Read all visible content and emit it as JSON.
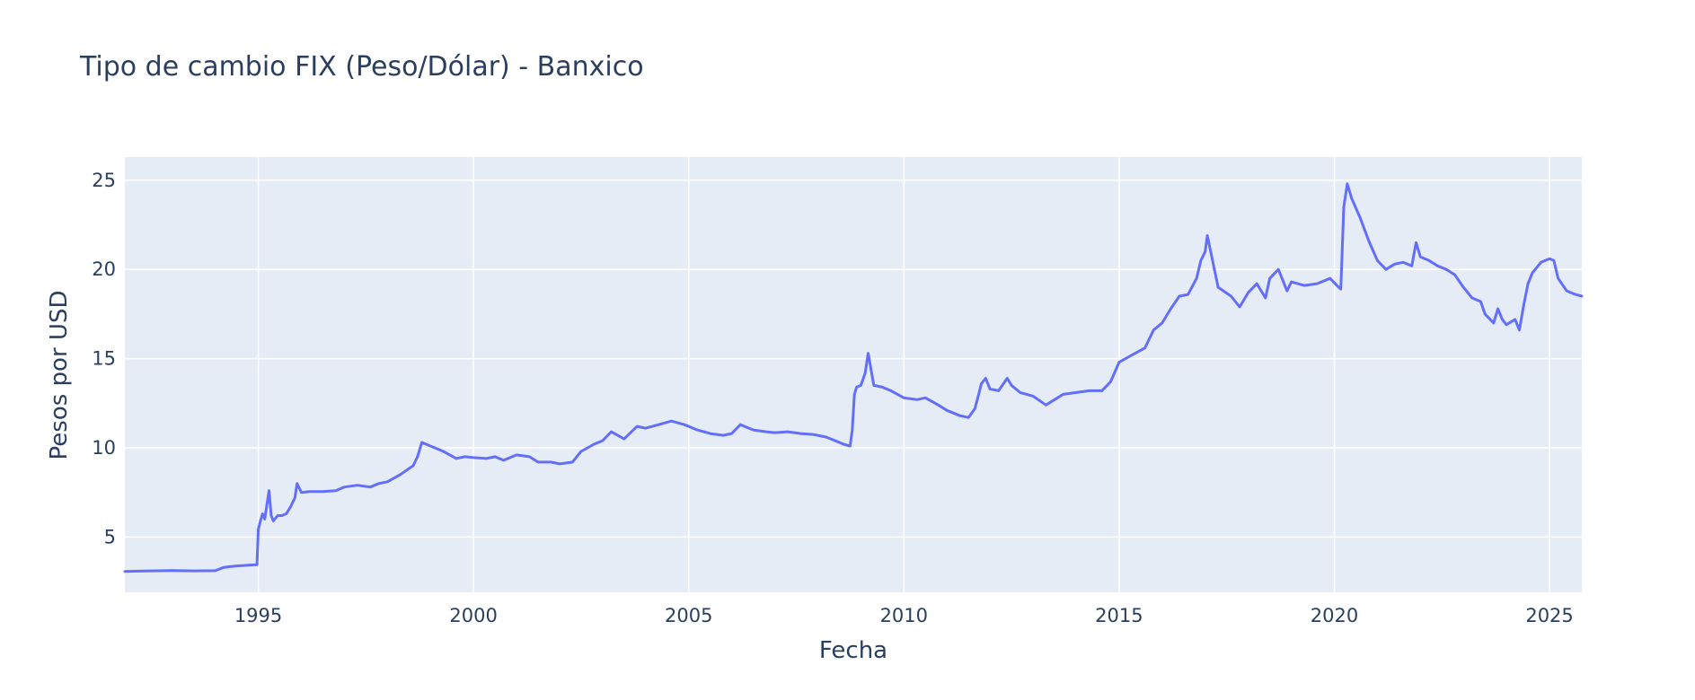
{
  "chart_data": {
    "type": "line",
    "title": "Tipo de cambio FIX (Peso/Dólar) - Banxico",
    "xlabel": "Fecha",
    "ylabel": "Pesos por USD",
    "xlim": [
      1991.9,
      2025.75
    ],
    "ylim": [
      1.9,
      26.3
    ],
    "grid": true,
    "legend": "none",
    "x_ticks": [
      1995,
      2000,
      2005,
      2010,
      2015,
      2020,
      2025
    ],
    "x_tick_labels": [
      "1995",
      "2000",
      "2005",
      "2010",
      "2015",
      "2020",
      "2025"
    ],
    "y_ticks": [
      5,
      10,
      15,
      20,
      25
    ],
    "y_tick_labels": [
      "5",
      "10",
      "15",
      "20",
      "25"
    ],
    "colors": {
      "line": "#636efa",
      "plot_bg": "#e5ecf6",
      "grid": "#ffffff",
      "text": "#2a3f5f"
    },
    "series": [
      {
        "x": [
          1991.9,
          1992.5,
          1993.0,
          1993.5,
          1994.0,
          1994.2,
          1994.5,
          1994.9,
          1994.97,
          1995.0,
          1995.05,
          1995.1,
          1995.15,
          1995.2,
          1995.25,
          1995.3,
          1995.35,
          1995.45,
          1995.55,
          1995.65,
          1995.75,
          1995.85,
          1995.9,
          1996.0,
          1996.2,
          1996.5,
          1996.8,
          1997.0,
          1997.3,
          1997.6,
          1997.8,
          1998.0,
          1998.3,
          1998.6,
          1998.7,
          1998.8,
          1999.0,
          1999.3,
          1999.6,
          1999.8,
          2000.0,
          2000.3,
          2000.5,
          2000.7,
          2001.0,
          2001.3,
          2001.5,
          2001.8,
          2002.0,
          2002.3,
          2002.5,
          2002.8,
          2003.0,
          2003.2,
          2003.5,
          2003.8,
          2004.0,
          2004.3,
          2004.6,
          2004.9,
          2005.2,
          2005.5,
          2005.8,
          2006.0,
          2006.2,
          2006.5,
          2006.8,
          2007.0,
          2007.3,
          2007.6,
          2007.9,
          2008.2,
          2008.4,
          2008.6,
          2008.75,
          2008.8,
          2008.85,
          2008.9,
          2009.0,
          2009.1,
          2009.17,
          2009.3,
          2009.5,
          2009.7,
          2010.0,
          2010.3,
          2010.5,
          2010.8,
          2011.0,
          2011.3,
          2011.5,
          2011.65,
          2011.8,
          2011.9,
          2012.0,
          2012.2,
          2012.4,
          2012.5,
          2012.7,
          2013.0,
          2013.3,
          2013.5,
          2013.7,
          2014.0,
          2014.3,
          2014.6,
          2014.8,
          2015.0,
          2015.3,
          2015.6,
          2015.8,
          2016.0,
          2016.2,
          2016.4,
          2016.6,
          2016.8,
          2016.9,
          2017.0,
          2017.05,
          2017.3,
          2017.6,
          2017.8,
          2018.0,
          2018.2,
          2018.4,
          2018.5,
          2018.7,
          2018.9,
          2019.0,
          2019.3,
          2019.6,
          2019.9,
          2020.1,
          2020.15,
          2020.22,
          2020.3,
          2020.4,
          2020.6,
          2020.8,
          2021.0,
          2021.2,
          2021.4,
          2021.6,
          2021.8,
          2021.9,
          2022.0,
          2022.2,
          2022.4,
          2022.6,
          2022.8,
          2023.0,
          2023.2,
          2023.4,
          2023.5,
          2023.7,
          2023.8,
          2023.9,
          2024.0,
          2024.2,
          2024.3,
          2024.4,
          2024.5,
          2024.6,
          2024.8,
          2025.0,
          2025.1,
          2025.2,
          2025.4,
          2025.6,
          2025.75
        ],
        "y": [
          3.07,
          3.1,
          3.12,
          3.1,
          3.11,
          3.3,
          3.38,
          3.44,
          3.45,
          5.4,
          5.9,
          6.3,
          6.0,
          6.8,
          7.6,
          6.2,
          5.9,
          6.2,
          6.2,
          6.3,
          6.7,
          7.2,
          8.0,
          7.5,
          7.55,
          7.55,
          7.6,
          7.8,
          7.9,
          7.8,
          8.0,
          8.1,
          8.5,
          9.0,
          9.5,
          10.3,
          10.1,
          9.8,
          9.4,
          9.5,
          9.45,
          9.4,
          9.5,
          9.3,
          9.6,
          9.5,
          9.2,
          9.2,
          9.1,
          9.2,
          9.8,
          10.2,
          10.4,
          10.9,
          10.5,
          11.2,
          11.1,
          11.3,
          11.5,
          11.3,
          11.0,
          10.8,
          10.7,
          10.8,
          11.3,
          11.0,
          10.9,
          10.85,
          10.9,
          10.8,
          10.75,
          10.6,
          10.4,
          10.2,
          10.1,
          11.0,
          13.0,
          13.4,
          13.5,
          14.2,
          15.3,
          13.5,
          13.4,
          13.2,
          12.8,
          12.7,
          12.8,
          12.4,
          12.1,
          11.8,
          11.7,
          12.2,
          13.6,
          13.9,
          13.3,
          13.2,
          13.9,
          13.5,
          13.1,
          12.9,
          12.4,
          12.7,
          13.0,
          13.1,
          13.2,
          13.2,
          13.7,
          14.8,
          15.2,
          15.6,
          16.6,
          17.0,
          17.8,
          18.5,
          18.6,
          19.5,
          20.5,
          21.0,
          21.9,
          19.0,
          18.5,
          17.9,
          18.7,
          19.2,
          18.4,
          19.5,
          20.0,
          18.8,
          19.3,
          19.1,
          19.2,
          19.5,
          19.0,
          18.9,
          23.5,
          24.8,
          24.0,
          22.9,
          21.6,
          20.5,
          20.0,
          20.3,
          20.4,
          20.2,
          21.5,
          20.7,
          20.5,
          20.2,
          20.0,
          19.7,
          19.0,
          18.4,
          18.2,
          17.5,
          17.0,
          17.8,
          17.2,
          16.9,
          17.2,
          16.6,
          18.0,
          19.2,
          19.8,
          20.4,
          20.6,
          20.5,
          19.5,
          18.8,
          18.6,
          18.5
        ]
      }
    ]
  }
}
